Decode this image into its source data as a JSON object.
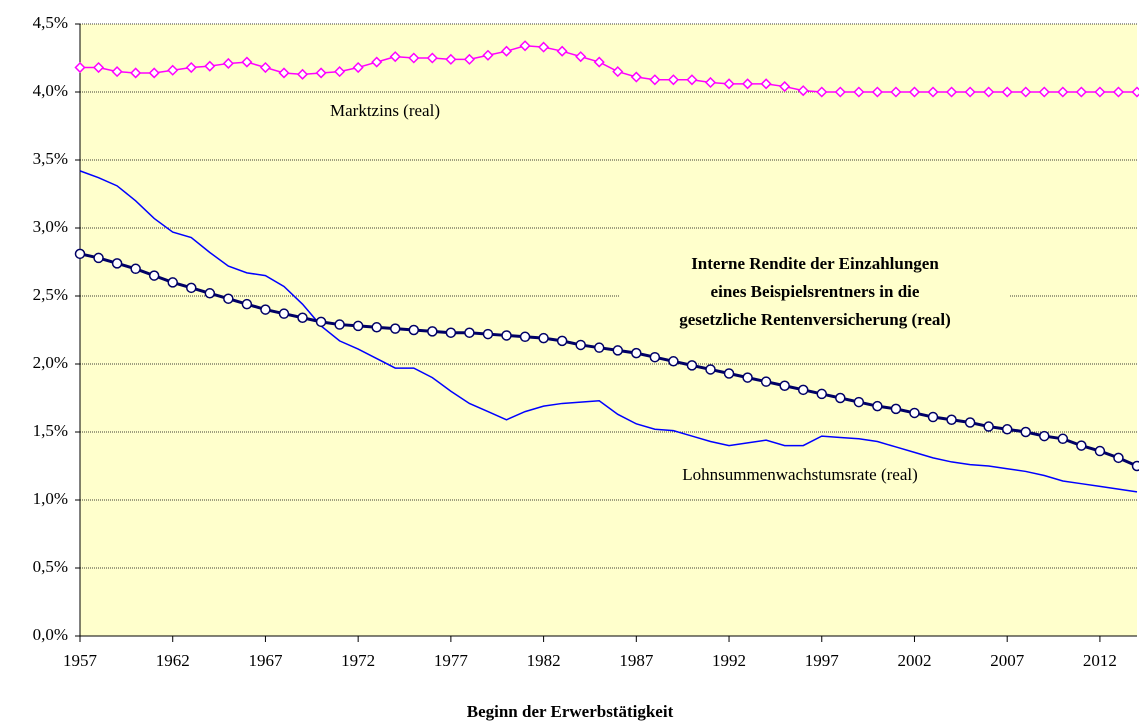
{
  "chart_data": {
    "type": "line",
    "x_label": "Beginn der Erwerbstätigkeit",
    "x": [
      1957,
      1958,
      1959,
      1960,
      1961,
      1962,
      1963,
      1964,
      1965,
      1966,
      1967,
      1968,
      1969,
      1970,
      1971,
      1972,
      1973,
      1974,
      1975,
      1976,
      1977,
      1978,
      1979,
      1980,
      1981,
      1982,
      1983,
      1984,
      1985,
      1986,
      1987,
      1988,
      1989,
      1990,
      1991,
      1992,
      1993,
      1994,
      1995,
      1996,
      1997,
      1998,
      1999,
      2000,
      2001,
      2002,
      2003,
      2004,
      2005,
      2006,
      2007,
      2008,
      2009,
      2010,
      2011,
      2012,
      2013,
      2014
    ],
    "xlim": [
      1957,
      2014
    ],
    "xticks": [
      1957,
      1962,
      1967,
      1972,
      1977,
      1982,
      1987,
      1992,
      1997,
      2002,
      2007,
      2012
    ],
    "ylim": [
      0,
      4.5
    ],
    "yticks": [
      {
        "value": 0,
        "label": "0,0%"
      },
      {
        "value": 0.5,
        "label": "0,5%"
      },
      {
        "value": 1,
        "label": "1,0%"
      },
      {
        "value": 1.5,
        "label": "1,5%"
      },
      {
        "value": 2,
        "label": "2,0%"
      },
      {
        "value": 2.5,
        "label": "2,5%"
      },
      {
        "value": 3,
        "label": "3,0%"
      },
      {
        "value": 3.5,
        "label": "3,5%"
      },
      {
        "value": 4,
        "label": "4,0%"
      },
      {
        "value": 4.5,
        "label": "4,5%"
      }
    ],
    "grid": true,
    "series": [
      {
        "name": "Marktzins (real)",
        "color": "#ff00ff",
        "marker": "diamond",
        "values": [
          4.18,
          4.18,
          4.15,
          4.14,
          4.14,
          4.16,
          4.18,
          4.19,
          4.21,
          4.22,
          4.18,
          4.14,
          4.13,
          4.14,
          4.15,
          4.18,
          4.22,
          4.26,
          4.25,
          4.25,
          4.24,
          4.24,
          4.27,
          4.3,
          4.34,
          4.33,
          4.3,
          4.26,
          4.22,
          4.15,
          4.11,
          4.09,
          4.09,
          4.09,
          4.07,
          4.06,
          4.06,
          4.06,
          4.04,
          4.01,
          4.0,
          4.0,
          4.0,
          4.0,
          4.0,
          4.0,
          4.0,
          4.0,
          4.0,
          4.0,
          4.0,
          4.0,
          4.0,
          4.0,
          4.0,
          4.0,
          4.0,
          4.0
        ]
      },
      {
        "name": [
          "Interne Rendite der Einzahlungen",
          "eines Beispielsrentners in die",
          "gesetzliche Rentenversicherung (real)"
        ],
        "color": "#000066",
        "marker": "circle",
        "values": [
          2.81,
          2.78,
          2.74,
          2.7,
          2.65,
          2.6,
          2.56,
          2.52,
          2.48,
          2.44,
          2.4,
          2.37,
          2.34,
          2.31,
          2.29,
          2.28,
          2.27,
          2.26,
          2.25,
          2.24,
          2.23,
          2.23,
          2.22,
          2.21,
          2.2,
          2.19,
          2.17,
          2.14,
          2.12,
          2.1,
          2.08,
          2.05,
          2.02,
          1.99,
          1.96,
          1.93,
          1.9,
          1.87,
          1.84,
          1.81,
          1.78,
          1.75,
          1.72,
          1.69,
          1.67,
          1.64,
          1.61,
          1.59,
          1.57,
          1.54,
          1.52,
          1.5,
          1.47,
          1.45,
          1.4,
          1.36,
          1.31,
          1.25
        ]
      },
      {
        "name": "Lohnsummenwachstumsrate (real)",
        "color": "#0000ff",
        "marker": "none",
        "values": [
          3.42,
          3.37,
          3.31,
          3.2,
          3.07,
          2.97,
          2.93,
          2.82,
          2.72,
          2.67,
          2.65,
          2.57,
          2.44,
          2.28,
          2.17,
          2.11,
          2.04,
          1.97,
          1.97,
          1.9,
          1.8,
          1.71,
          1.65,
          1.59,
          1.65,
          1.69,
          1.71,
          1.72,
          1.73,
          1.63,
          1.56,
          1.52,
          1.51,
          1.47,
          1.43,
          1.4,
          1.42,
          1.44,
          1.4,
          1.4,
          1.47,
          1.46,
          1.45,
          1.43,
          1.39,
          1.35,
          1.31,
          1.28,
          1.26,
          1.25,
          1.23,
          1.21,
          1.18,
          1.14,
          1.12,
          1.1,
          1.08,
          1.06
        ]
      }
    ]
  }
}
